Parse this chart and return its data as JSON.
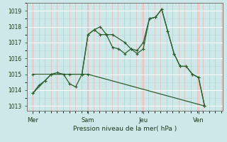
{
  "title": "Pression niveau de la mer( hPa )",
  "ylim": [
    1012.7,
    1019.5
  ],
  "yticks": [
    1013,
    1014,
    1015,
    1016,
    1017,
    1018,
    1019
  ],
  "bg_color": "#cce8e8",
  "line_color": "#2d5e2d",
  "grid_color_minor_x": "#e8b8b8",
  "grid_color_minor_y": "#b8d8d8",
  "grid_color_major": "#a0c8c8",
  "xtick_labels": [
    "Mer",
    "Sam",
    "Jeu",
    "Ven"
  ],
  "xtick_pos": [
    0,
    3,
    6,
    9
  ],
  "xlim": [
    -0.3,
    10.3
  ],
  "line1_x": [
    0,
    0.33,
    0.67,
    1.0,
    1.33,
    1.67,
    2.0,
    2.33,
    2.67,
    3.0,
    3.33,
    3.67,
    4.0,
    4.33,
    4.67,
    5.0,
    5.33,
    5.67,
    6.0,
    6.33,
    6.67,
    7.0,
    7.33,
    7.67,
    8.0,
    8.33,
    8.67,
    9.0,
    9.33
  ],
  "line1_y": [
    1013.8,
    1014.3,
    1014.6,
    1015.0,
    1015.1,
    1015.0,
    1014.4,
    1014.2,
    1015.0,
    1017.5,
    1017.8,
    1017.5,
    1017.5,
    1016.7,
    1016.6,
    1016.3,
    1016.6,
    1016.5,
    1017.0,
    1018.5,
    1018.6,
    1019.1,
    1017.7,
    1016.3,
    1015.5,
    1015.5,
    1015.0,
    1014.8,
    1013.0
  ],
  "line2_x": [
    0,
    1.0,
    2.0,
    2.67,
    3.0,
    3.33,
    3.67,
    4.0,
    4.33,
    5.0,
    5.33,
    5.67,
    6.0,
    6.33,
    6.67,
    7.0,
    7.33,
    7.67,
    8.0,
    8.33,
    8.67,
    9.0,
    9.33
  ],
  "line2_y": [
    1013.8,
    1015.0,
    1015.0,
    1015.0,
    1017.5,
    1017.8,
    1018.0,
    1017.5,
    1017.5,
    1017.0,
    1016.6,
    1016.3,
    1016.6,
    1018.5,
    1018.6,
    1019.1,
    1017.7,
    1016.3,
    1015.5,
    1015.5,
    1015.0,
    1014.8,
    1013.0
  ],
  "line3_x": [
    0,
    3.0,
    9.33
  ],
  "line3_y": [
    1015.0,
    1015.0,
    1013.0
  ]
}
